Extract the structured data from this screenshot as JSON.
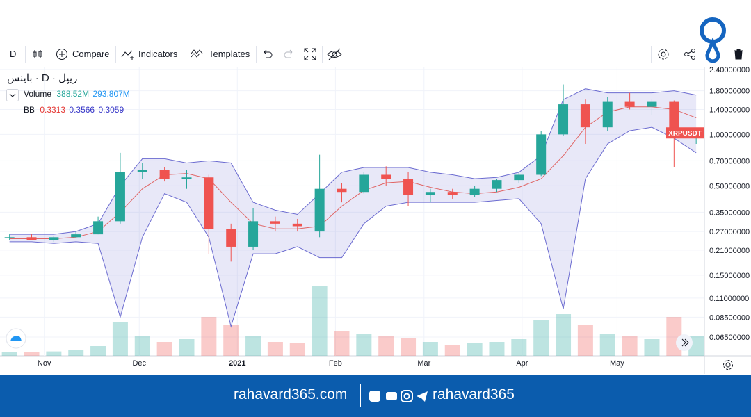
{
  "toolbar": {
    "items": [
      "D",
      "Compare",
      "Indicators",
      "Templates"
    ]
  },
  "legend": {
    "title": "ریپل · D · باینس",
    "volume_label": "Volume",
    "volume_values": [
      "388.52M",
      "293.807M"
    ],
    "bb_label": "BB",
    "bb_values": [
      0.3313,
      0.3566,
      0.3059
    ]
  },
  "chart_data": {
    "type": "candlestick",
    "log_scale": true,
    "grid": true,
    "symbol_label": "XRPUSDT",
    "colors": {
      "up": "#26a69a",
      "down": "#ef5350",
      "band": "#6b6bd0",
      "middle": "#e06464"
    },
    "x": [
      3,
      10,
      17,
      24,
      31,
      38,
      45,
      52,
      59,
      66,
      73,
      80,
      87,
      94,
      101,
      108,
      115,
      122,
      129,
      136,
      143,
      150,
      157,
      164,
      171,
      178,
      185,
      192,
      199,
      206,
      213,
      220
    ],
    "open": [
      0.25,
      0.25,
      0.24,
      0.25,
      0.26,
      0.31,
      0.6,
      0.62,
      0.55,
      0.56,
      0.28,
      0.22,
      0.31,
      0.3,
      0.27,
      0.48,
      0.46,
      0.58,
      0.55,
      0.44,
      0.46,
      0.44,
      0.48,
      0.54,
      0.58,
      1.0,
      1.5,
      1.1,
      1.55,
      1.45,
      1.55,
      1.0
    ],
    "high": [
      0.26,
      0.26,
      0.255,
      0.27,
      0.33,
      0.78,
      0.68,
      0.64,
      0.62,
      0.58,
      0.3,
      0.37,
      0.33,
      0.32,
      0.76,
      0.52,
      0.6,
      0.65,
      0.6,
      0.48,
      0.48,
      0.5,
      0.55,
      0.6,
      1.05,
      1.96,
      1.6,
      1.65,
      1.75,
      1.6,
      1.58,
      1.08
    ],
    "low": [
      0.24,
      0.24,
      0.235,
      0.25,
      0.26,
      0.3,
      0.55,
      0.53,
      0.48,
      0.2,
      0.18,
      0.21,
      0.27,
      0.27,
      0.25,
      0.4,
      0.45,
      0.5,
      0.38,
      0.4,
      0.42,
      0.43,
      0.46,
      0.52,
      0.57,
      0.98,
      0.88,
      1.05,
      1.4,
      1.3,
      0.64,
      0.88
    ],
    "close": [
      0.25,
      0.24,
      0.25,
      0.26,
      0.31,
      0.6,
      0.62,
      0.55,
      0.56,
      0.28,
      0.22,
      0.31,
      0.3,
      0.29,
      0.48,
      0.46,
      0.58,
      0.55,
      0.44,
      0.46,
      0.44,
      0.48,
      0.54,
      0.58,
      1.0,
      1.5,
      1.1,
      1.55,
      1.45,
      1.55,
      1.0,
      1.02
    ],
    "volume": [
      150,
      140,
      160,
      200,
      350,
      1200,
      700,
      500,
      600,
      1400,
      1100,
      700,
      500,
      450,
      2500,
      900,
      800,
      700,
      650,
      500,
      400,
      450,
      500,
      600,
      1300,
      1500,
      1100,
      800,
      700,
      600,
      1400,
      700
    ],
    "bands": {
      "upper": [
        0.26,
        0.26,
        0.26,
        0.27,
        0.3,
        0.5,
        0.72,
        0.72,
        0.68,
        0.7,
        0.68,
        0.4,
        0.36,
        0.34,
        0.45,
        0.6,
        0.64,
        0.64,
        0.64,
        0.6,
        0.58,
        0.55,
        0.56,
        0.6,
        0.75,
        1.6,
        1.85,
        1.75,
        1.75,
        1.75,
        1.8,
        1.7
      ],
      "middle": [
        0.245,
        0.245,
        0.245,
        0.25,
        0.27,
        0.35,
        0.48,
        0.58,
        0.59,
        0.55,
        0.4,
        0.3,
        0.28,
        0.28,
        0.29,
        0.38,
        0.47,
        0.52,
        0.53,
        0.49,
        0.46,
        0.45,
        0.46,
        0.49,
        0.55,
        0.75,
        1.1,
        1.35,
        1.45,
        1.45,
        1.4,
        1.25
      ],
      "lower": [
        0.235,
        0.235,
        0.23,
        0.235,
        0.23,
        0.085,
        0.25,
        0.45,
        0.4,
        0.25,
        0.075,
        0.2,
        0.2,
        0.22,
        0.19,
        0.19,
        0.3,
        0.38,
        0.4,
        0.4,
        0.4,
        0.4,
        0.41,
        0.42,
        0.3,
        0.095,
        0.55,
        0.88,
        1.05,
        1.1,
        0.95,
        0.78
      ]
    },
    "xlim": [
      0,
      222.6
    ],
    "xticks": [
      {
        "value": 14,
        "label": "Nov"
      },
      {
        "value": 44,
        "label": "Dec"
      },
      {
        "value": 75,
        "label": "2021"
      },
      {
        "value": 106,
        "label": "Feb"
      },
      {
        "value": 134,
        "label": "Mar"
      },
      {
        "value": 165,
        "label": "Apr"
      },
      {
        "value": 195,
        "label": "May"
      }
    ],
    "ylim": [
      0.0505,
      2.49
    ],
    "yticks": [
      {
        "value": 2.4,
        "label": "2.40000000"
      },
      {
        "value": 1.8,
        "label": "1.80000000"
      },
      {
        "value": 1.4,
        "label": "1.40000000"
      },
      {
        "value": 1.0,
        "label": "1.00000000"
      },
      {
        "value": 0.7,
        "label": "0.70000000"
      },
      {
        "value": 0.5,
        "label": "0.50000000"
      },
      {
        "value": 0.35,
        "label": "0.35000000"
      },
      {
        "value": 0.27,
        "label": "0.27000000"
      },
      {
        "value": 0.21,
        "label": "0.21000000"
      },
      {
        "value": 0.15,
        "label": "0.15000000"
      },
      {
        "value": 0.11,
        "label": "0.11000000"
      },
      {
        "value": 0.085,
        "label": "0.08500000"
      },
      {
        "value": 0.065,
        "label": "0.06500000"
      }
    ]
  },
  "footer": {
    "site": "rahavard365.com",
    "handle": "rahavard365"
  }
}
